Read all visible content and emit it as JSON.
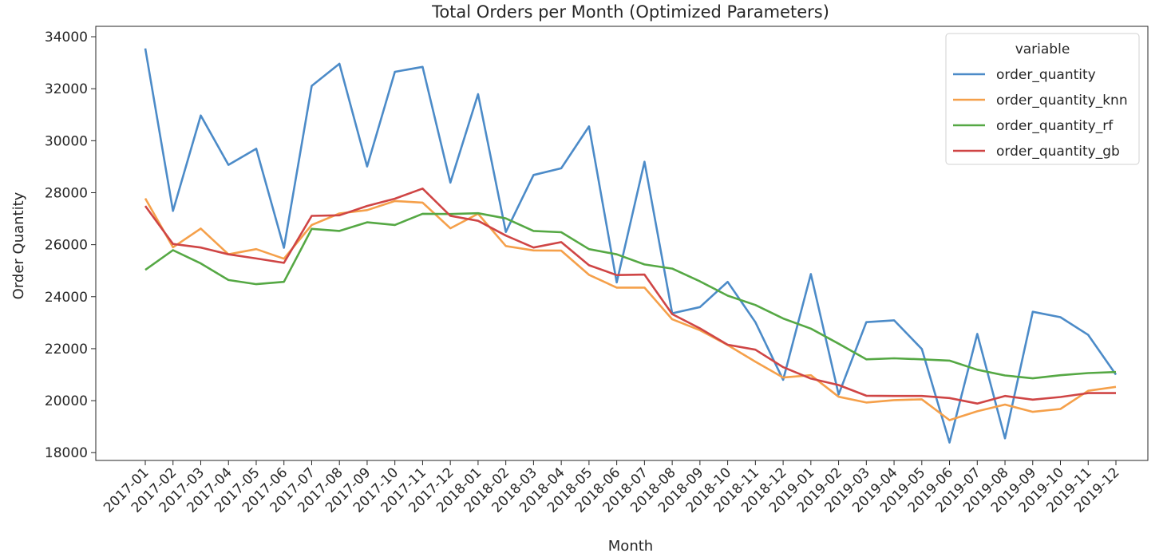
{
  "chart_data": {
    "type": "line",
    "title": "Total Orders per Month (Optimized Parameters)",
    "xlabel": "Month",
    "ylabel": "Order Quantity",
    "ylim": [
      17700,
      34400
    ],
    "yticks": [
      18000,
      20000,
      22000,
      24000,
      26000,
      28000,
      30000,
      32000,
      34000
    ],
    "grid": false,
    "legend_position": "top-right",
    "legend_title": "variable",
    "categories": [
      "2017-01",
      "2017-02",
      "2017-03",
      "2017-04",
      "2017-05",
      "2017-06",
      "2017-07",
      "2017-08",
      "2017-09",
      "2017-10",
      "2017-11",
      "2017-12",
      "2018-01",
      "2018-02",
      "2018-03",
      "2018-04",
      "2018-05",
      "2018-06",
      "2018-07",
      "2018-08",
      "2018-09",
      "2018-10",
      "2018-11",
      "2018-12",
      "2019-01",
      "2019-02",
      "2019-03",
      "2019-04",
      "2019-05",
      "2019-06",
      "2019-07",
      "2019-08",
      "2019-09",
      "2019-10",
      "2019-11",
      "2019-12"
    ],
    "series": [
      {
        "name": "order_quantity",
        "color": "#4c8bc8",
        "values": [
          33550,
          27300,
          30970,
          29070,
          29690,
          25880,
          32110,
          32960,
          29010,
          32650,
          32840,
          28390,
          31790,
          26490,
          28680,
          28940,
          30550,
          24550,
          29190,
          23360,
          23600,
          24570,
          23020,
          20800,
          24870,
          20240,
          23020,
          23090,
          21990,
          18390,
          22570,
          18550,
          23420,
          23210,
          22530,
          21000
        ]
      },
      {
        "name": "order_quantity_knn",
        "color": "#f5a04a",
        "values": [
          27780,
          25900,
          26620,
          25630,
          25830,
          25460,
          26760,
          27200,
          27330,
          27680,
          27620,
          26630,
          27190,
          25950,
          25780,
          25770,
          24840,
          24350,
          24350,
          23130,
          22710,
          22140,
          21500,
          20890,
          20980,
          20150,
          19930,
          20020,
          20050,
          19250,
          19590,
          19850,
          19570,
          19680,
          20380,
          20530
        ]
      },
      {
        "name": "order_quantity_rf",
        "color": "#55a844",
        "values": [
          25030,
          25790,
          25280,
          24640,
          24480,
          24570,
          26610,
          26530,
          26860,
          26760,
          27190,
          27180,
          27210,
          27010,
          26530,
          26480,
          25830,
          25630,
          25240,
          25080,
          24590,
          24040,
          23680,
          23160,
          22770,
          22190,
          21590,
          21630,
          21590,
          21540,
          21190,
          20970,
          20860,
          20980,
          21060,
          21100
        ]
      },
      {
        "name": "order_quantity_gb",
        "color": "#cf4545",
        "values": [
          27490,
          26030,
          25890,
          25630,
          25470,
          25300,
          27110,
          27130,
          27490,
          27770,
          28160,
          27110,
          26920,
          26350,
          25890,
          26100,
          25210,
          24830,
          24850,
          23330,
          22780,
          22150,
          21960,
          21290,
          20850,
          20600,
          20190,
          20180,
          20180,
          20100,
          19890,
          20180,
          20040,
          20140,
          20290,
          20290
        ]
      }
    ]
  }
}
